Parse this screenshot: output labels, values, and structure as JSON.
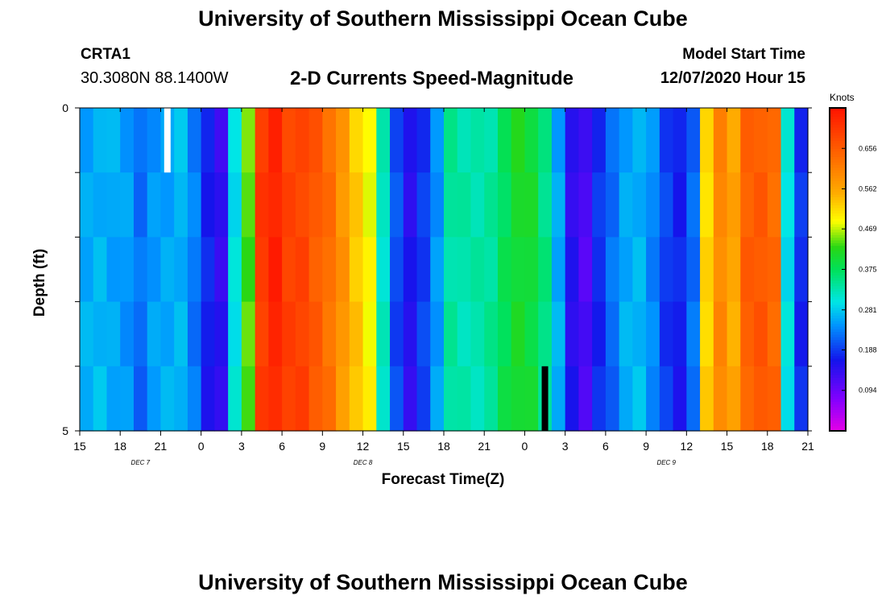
{
  "header": {
    "title": "University of Southern Mississippi Ocean Cube",
    "footer_title": "University of Southern Mississippi Ocean Cube",
    "station_id": "CRTA1",
    "station_coords": "30.3080N 88.1400W",
    "model_label": "Model Start Time",
    "model_time": "12/07/2020 Hour 15"
  },
  "chart_data": {
    "type": "heatmap",
    "title": "2-D Currents Speed-Magnitude",
    "xlabel": "Forecast Time(Z)",
    "ylabel": "Depth (ft)",
    "ylim": [
      0,
      5
    ],
    "y_ticks": [
      "0",
      "5"
    ],
    "x_range_hours": [
      0,
      54
    ],
    "x_ticks": [
      "15",
      "18",
      "21",
      "0",
      "3",
      "6",
      "9",
      "12",
      "15",
      "18",
      "21",
      "0",
      "3",
      "6",
      "9",
      "12",
      "15",
      "18",
      "21"
    ],
    "date_labels": [
      {
        "text": "DEC 7",
        "hour": 4.5
      },
      {
        "text": "DEC 8",
        "hour": 21
      },
      {
        "text": "DEC 9",
        "hour": 43.5
      }
    ],
    "colorbar": {
      "title": "Knots",
      "min": 0.0,
      "max": 0.75,
      "ticks": [
        "0.094",
        "0.188",
        "0.281",
        "0.375",
        "0.469",
        "0.562",
        "0.656"
      ]
    },
    "depth_levels": 5,
    "speed_knots_by_hour": [
      0.26,
      0.27,
      0.26,
      0.25,
      0.22,
      0.25,
      0.26,
      0.27,
      0.23,
      0.17,
      0.14,
      0.3,
      0.44,
      0.7,
      0.73,
      0.69,
      0.69,
      0.66,
      0.63,
      0.58,
      0.53,
      0.49,
      0.32,
      0.2,
      0.15,
      0.19,
      0.25,
      0.34,
      0.33,
      0.33,
      0.34,
      0.38,
      0.41,
      0.4,
      0.35,
      0.26,
      0.15,
      0.12,
      0.18,
      0.22,
      0.26,
      0.27,
      0.24,
      0.19,
      0.17,
      0.22,
      0.52,
      0.6,
      0.56,
      0.65,
      0.66,
      0.64,
      0.3,
      0.18
    ],
    "missing_cells": [
      {
        "hour": 6.5,
        "depth_index": 0,
        "shade": "white"
      },
      {
        "hour": 34.5,
        "depth_index": 4,
        "shade": "black"
      }
    ]
  }
}
